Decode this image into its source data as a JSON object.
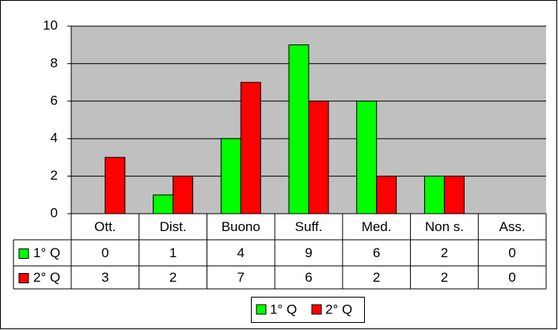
{
  "chart_data": {
    "type": "bar",
    "categories": [
      "Ott.",
      "Dist.",
      "Buono",
      "Suff.",
      "Med.",
      "Non s.",
      "Ass."
    ],
    "series": [
      {
        "name": "1° Q",
        "color": "#00ff00",
        "values": [
          0,
          1,
          4,
          9,
          6,
          2,
          0
        ]
      },
      {
        "name": "2° Q",
        "color": "#ff0000",
        "values": [
          3,
          2,
          7,
          6,
          2,
          2,
          0
        ]
      }
    ],
    "ylim": [
      0,
      10
    ],
    "yticks": [
      0,
      2,
      4,
      6,
      8,
      10
    ],
    "grid": true,
    "legend": "bottom"
  }
}
